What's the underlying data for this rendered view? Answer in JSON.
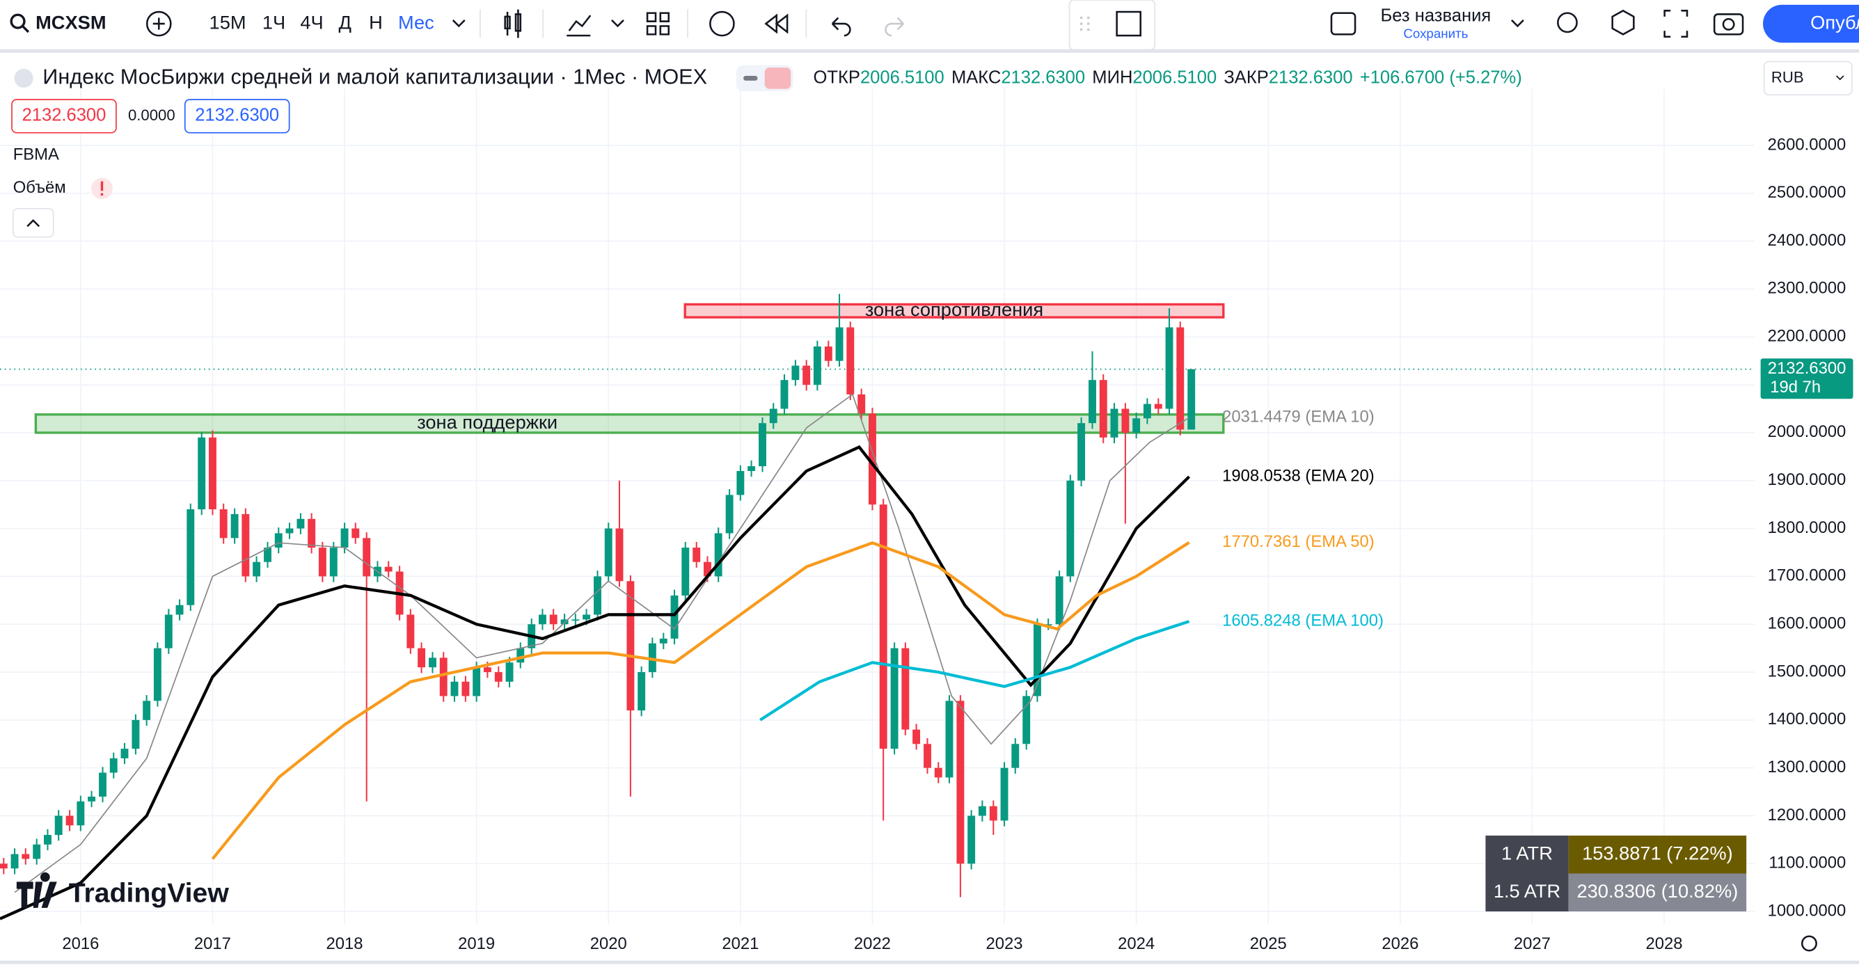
{
  "toolbar": {
    "symbol": "MCXSM",
    "intervals": [
      "15М",
      "1Ч",
      "4Ч",
      "Д",
      "Н",
      "Мес"
    ],
    "layout_name": "Без названия",
    "save": "Сохранить",
    "publish": "Опублико"
  },
  "legend": {
    "title": "Индекс МосБиржи средней и малой капитализации · 1Мес · MOEX",
    "open_label": "ОТКР",
    "open": "2006.5100",
    "high_label": "МАКС",
    "high": "2132.6300",
    "low_label": "МИН",
    "low": "2006.5100",
    "close_label": "ЗАКР",
    "close": "2132.6300",
    "change": "+106.6700 (+5.27%)",
    "bid": "2132.6300",
    "spread": "0.0000",
    "ask": "2132.6300",
    "indicators": [
      "FBMA",
      "Объём"
    ]
  },
  "currency": "RUB",
  "watermark": "TradingView",
  "atr_table": {
    "rows": [
      [
        "1 ATR",
        "153.8871 (7.22%)"
      ],
      [
        "1.5 ATR",
        "230.8306 (10.82%)"
      ]
    ]
  },
  "chart_data": {
    "type": "candlestick",
    "up_color": "#089981",
    "down_color": "#f23645",
    "grid": true,
    "xlim": [
      2015.389,
      2028.686
    ],
    "xticks": [
      2016,
      2017,
      2018,
      2019,
      2020,
      2021,
      2022,
      2023,
      2024,
      2025,
      2026,
      2027,
      2028
    ],
    "ylim": [
      973,
      2718
    ],
    "yticks": [
      {
        "value": 1000,
        "label": "1000.0000"
      },
      {
        "value": 1100,
        "label": "1100.0000"
      },
      {
        "value": 1200,
        "label": "1200.0000"
      },
      {
        "value": 1300,
        "label": "1300.0000"
      },
      {
        "value": 1400,
        "label": "1400.0000"
      },
      {
        "value": 1500,
        "label": "1500.0000"
      },
      {
        "value": 1600,
        "label": "1600.0000"
      },
      {
        "value": 1700,
        "label": "1700.0000"
      },
      {
        "value": 1800,
        "label": "1800.0000"
      },
      {
        "value": 1900,
        "label": "1900.0000"
      },
      {
        "value": 2000,
        "label": "2000.0000"
      },
      {
        "value": 2100,
        "label": "2100.0000"
      },
      {
        "value": 2200,
        "label": "2200.0000"
      },
      {
        "value": 2300,
        "label": "2300.0000"
      },
      {
        "value": 2400,
        "label": "2400.0000"
      },
      {
        "value": 2500,
        "label": "2500.0000"
      },
      {
        "value": 2600,
        "label": "2600.0000"
      }
    ],
    "x": [
      2015.417,
      2015.5,
      2015.583,
      2015.667,
      2015.75,
      2015.833,
      2015.917,
      2016,
      2016.083,
      2016.167,
      2016.25,
      2016.333,
      2016.417,
      2016.5,
      2016.583,
      2016.667,
      2016.75,
      2016.833,
      2016.917,
      2017,
      2017.083,
      2017.167,
      2017.25,
      2017.333,
      2017.417,
      2017.5,
      2017.583,
      2017.667,
      2017.75,
      2017.833,
      2017.917,
      2018,
      2018.083,
      2018.167,
      2018.25,
      2018.333,
      2018.417,
      2018.5,
      2018.583,
      2018.667,
      2018.75,
      2018.833,
      2018.917,
      2019,
      2019.083,
      2019.167,
      2019.25,
      2019.333,
      2019.417,
      2019.5,
      2019.583,
      2019.667,
      2019.75,
      2019.833,
      2019.917,
      2020,
      2020.083,
      2020.167,
      2020.25,
      2020.333,
      2020.417,
      2020.5,
      2020.583,
      2020.667,
      2020.75,
      2020.833,
      2020.917,
      2021,
      2021.083,
      2021.167,
      2021.25,
      2021.333,
      2021.417,
      2021.5,
      2021.583,
      2021.667,
      2021.75,
      2021.833,
      2021.917,
      2022,
      2022.083,
      2022.167,
      2022.25,
      2022.333,
      2022.417,
      2022.5,
      2022.583,
      2022.667,
      2022.75,
      2022.833,
      2022.917,
      2023,
      2023.083,
      2023.167,
      2023.25,
      2023.333,
      2023.417,
      2023.5,
      2023.583,
      2023.667,
      2023.75,
      2023.833,
      2023.917,
      2024,
      2024.083,
      2024.167,
      2024.25,
      2024.333,
      2024.417
    ],
    "open": [
      1100,
      1090,
      1120,
      1110,
      1140,
      1160,
      1200,
      1180,
      1230,
      1240,
      1290,
      1320,
      1340,
      1400,
      1440,
      1550,
      1620,
      1640,
      1840,
      1990,
      1840,
      1780,
      1830,
      1700,
      1730,
      1760,
      1790,
      1800,
      1820,
      1760,
      1700,
      1760,
      1800,
      1780,
      1700,
      1720,
      1710,
      1620,
      1550,
      1510,
      1530,
      1450,
      1480,
      1450,
      1510,
      1500,
      1480,
      1520,
      1550,
      1600,
      1620,
      1600,
      1610,
      1610,
      1620,
      1700,
      1800,
      1690,
      1420,
      1500,
      1560,
      1570,
      1660,
      1760,
      1730,
      1700,
      1790,
      1870,
      1920,
      1930,
      2020,
      2050,
      2110,
      2140,
      2100,
      2180,
      2150,
      2220,
      2080,
      2040,
      1850,
      1340,
      1550,
      1380,
      1350,
      1300,
      1280,
      1440,
      1100,
      1200,
      1220,
      1190,
      1300,
      1350,
      1450,
      1600,
      1600,
      1700,
      1900,
      2020,
      2110,
      1990,
      2050,
      2000,
      2030,
      2060,
      2050,
      2220,
      2006.51
    ],
    "high": [
      1112,
      1132,
      1132,
      1152,
      1172,
      1212,
      1212,
      1242,
      1252,
      1302,
      1332,
      1352,
      1412,
      1452,
      1562,
      1632,
      1652,
      1852,
      2002,
      2005,
      1852,
      1842,
      1842,
      1742,
      1772,
      1802,
      1812,
      1832,
      1832,
      1772,
      1772,
      1812,
      1812,
      1792,
      1732,
      1732,
      1722,
      1632,
      1562,
      1542,
      1542,
      1492,
      1492,
      1522,
      1522,
      1512,
      1532,
      1562,
      1612,
      1632,
      1632,
      1622,
      1622,
      1632,
      1712,
      1812,
      1900,
      1702,
      1512,
      1572,
      1582,
      1672,
      1772,
      1772,
      1742,
      1802,
      1882,
      1932,
      1942,
      2032,
      2062,
      2122,
      2152,
      2152,
      2192,
      2192,
      2290,
      2232,
      2092,
      2052,
      1862,
      1562,
      1562,
      1392,
      1362,
      1312,
      1452,
      1452,
      1212,
      1232,
      1232,
      1312,
      1362,
      1462,
      1612,
      1612,
      1712,
      1912,
      2032,
      2170,
      2122,
      2062,
      2062,
      2042,
      2072,
      2072,
      2260,
      2232,
      2132.63
    ],
    "low": [
      1078,
      1078,
      1098,
      1098,
      1128,
      1148,
      1168,
      1168,
      1218,
      1228,
      1278,
      1308,
      1328,
      1388,
      1428,
      1538,
      1608,
      1628,
      1828,
      1828,
      1768,
      1768,
      1688,
      1688,
      1718,
      1748,
      1778,
      1788,
      1748,
      1688,
      1688,
      1748,
      1768,
      1230,
      1688,
      1698,
      1608,
      1538,
      1498,
      1498,
      1438,
      1438,
      1438,
      1438,
      1488,
      1468,
      1468,
      1508,
      1538,
      1588,
      1588,
      1588,
      1598,
      1598,
      1608,
      1688,
      1678,
      1240,
      1408,
      1488,
      1548,
      1558,
      1648,
      1718,
      1688,
      1688,
      1778,
      1858,
      1908,
      1918,
      2008,
      2038,
      2098,
      2088,
      2088,
      2138,
      2138,
      2068,
      2028,
      1838,
      1190,
      1328,
      1368,
      1338,
      1288,
      1268,
      1268,
      1030,
      1088,
      1188,
      1160,
      1178,
      1288,
      1338,
      1438,
      1588,
      1588,
      1688,
      1888,
      2008,
      1978,
      1978,
      1810,
      1988,
      2018,
      2038,
      2038,
      1994.51,
      2006.51
    ],
    "close": [
      1090,
      1120,
      1110,
      1140,
      1160,
      1200,
      1180,
      1230,
      1240,
      1290,
      1320,
      1340,
      1400,
      1440,
      1550,
      1620,
      1640,
      1840,
      1990,
      1840,
      1780,
      1830,
      1700,
      1730,
      1760,
      1790,
      1800,
      1820,
      1760,
      1700,
      1760,
      1800,
      1780,
      1700,
      1720,
      1710,
      1620,
      1550,
      1510,
      1530,
      1450,
      1480,
      1450,
      1510,
      1500,
      1480,
      1520,
      1550,
      1600,
      1620,
      1600,
      1610,
      1610,
      1620,
      1700,
      1800,
      1690,
      1420,
      1500,
      1560,
      1570,
      1660,
      1760,
      1730,
      1700,
      1790,
      1870,
      1920,
      1930,
      2020,
      2050,
      2110,
      2140,
      2100,
      2180,
      2150,
      2220,
      2080,
      2040,
      1850,
      1340,
      1550,
      1380,
      1350,
      1300,
      1280,
      1440,
      1100,
      1200,
      1220,
      1190,
      1300,
      1350,
      1450,
      1600,
      1600,
      1700,
      1900,
      2020,
      2110,
      1990,
      2050,
      2000,
      2030,
      2060,
      2050,
      2220,
      2006.51,
      2132.63
    ],
    "lines": [
      {
        "label": "2031.4479 (EMA 10)",
        "color": "#888888",
        "width": 1,
        "x": [
          2015.5,
          2016,
          2016.5,
          2017,
          2017.5,
          2018,
          2018.5,
          2019,
          2019.5,
          2020,
          2020.5,
          2021,
          2021.5,
          2021.85,
          2022.2,
          2022.6,
          2022.9,
          2023.2,
          2023.5,
          2023.8,
          2024.1,
          2024.4
        ],
        "values": [
          1040,
          1140,
          1320,
          1700,
          1770,
          1760,
          1660,
          1530,
          1560,
          1690,
          1590,
          1800,
          2010,
          2080,
          1800,
          1450,
          1350,
          1440,
          1650,
          1900,
          1980,
          2031.4479
        ]
      },
      {
        "label": "1908.0538 (EMA 20)",
        "color": "#000000",
        "width": 2.5,
        "x": [
          2015.389,
          2016,
          2016.5,
          2017,
          2017.5,
          2018,
          2018.5,
          2019,
          2019.5,
          2020,
          2020.5,
          2021,
          2021.5,
          2021.9,
          2022.3,
          2022.7,
          2023.2,
          2023.5,
          2024,
          2024.4
        ],
        "values": [
          985,
          1060,
          1200,
          1490,
          1640,
          1680,
          1660,
          1600,
          1570,
          1620,
          1620,
          1780,
          1920,
          1970,
          1830,
          1640,
          1473,
          1560,
          1800,
          1908.0538
        ]
      },
      {
        "label": "1770.7361 (EMA 50)",
        "color": "#f89a1c",
        "width": 2.5,
        "x": [
          2017,
          2017.5,
          2018,
          2018.5,
          2019,
          2019.5,
          2020,
          2020.5,
          2021,
          2021.5,
          2022,
          2022.5,
          2023,
          2023.4,
          2023.7,
          2024,
          2024.4
        ],
        "values": [
          1110,
          1280,
          1390,
          1480,
          1510,
          1540,
          1540,
          1520,
          1620,
          1720,
          1770,
          1720,
          1620,
          1590,
          1660,
          1700,
          1770.7361
        ]
      },
      {
        "label": "1605.8248 (EMA 100)",
        "color": "#00bcd4",
        "width": 2.5,
        "x": [
          2021.15,
          2021.6,
          2022,
          2022.5,
          2023,
          2023.5,
          2024,
          2024.4
        ],
        "values": [
          1400,
          1480,
          1520,
          1500,
          1470,
          1510,
          1570,
          1605.8248
        ]
      }
    ],
    "zones": [
      {
        "label": "зона сопротивления",
        "x": [
          2020.58,
          2024.66
        ],
        "y": [
          2241,
          2268
        ],
        "color": "#f23645"
      },
      {
        "label": "зона поддержки",
        "x": [
          2015.66,
          2024.66
        ],
        "y": [
          2000,
          2038
        ],
        "color": "#4caf50"
      }
    ],
    "last_price": 2132.63,
    "last_price_label": "2132.6300",
    "countdown": "19d 7h"
  }
}
